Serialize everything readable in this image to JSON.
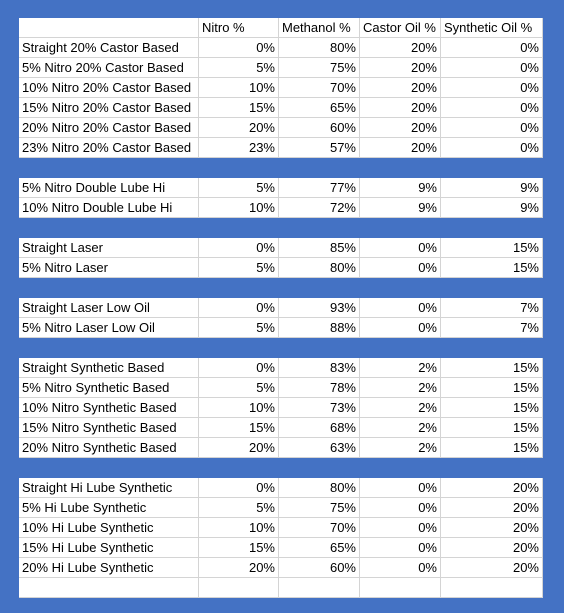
{
  "table": {
    "columns": [
      "Nitro %",
      "Methanol %",
      "Castor Oil %",
      "Synthetic Oil %"
    ],
    "groups": [
      [
        [
          "Straight 20% Castor Based",
          "0%",
          "80%",
          "20%",
          "0%"
        ],
        [
          "5% Nitro 20% Castor Based",
          "5%",
          "75%",
          "20%",
          "0%"
        ],
        [
          "10% Nitro 20% Castor Based",
          "10%",
          "70%",
          "20%",
          "0%"
        ],
        [
          "15% Nitro 20% Castor Based",
          "15%",
          "65%",
          "20%",
          "0%"
        ],
        [
          "20% Nitro 20% Castor Based",
          "20%",
          "60%",
          "20%",
          "0%"
        ],
        [
          "23% Nitro 20% Castor Based",
          "23%",
          "57%",
          "20%",
          "0%"
        ]
      ],
      [
        [
          "5% Nitro Double Lube Hi",
          "5%",
          "77%",
          "9%",
          "9%"
        ],
        [
          "10% Nitro Double Lube Hi",
          "10%",
          "72%",
          "9%",
          "9%"
        ]
      ],
      [
        [
          "Straight Laser",
          "0%",
          "85%",
          "0%",
          "15%"
        ],
        [
          "5% Nitro Laser",
          "5%",
          "80%",
          "0%",
          "15%"
        ]
      ],
      [
        [
          "Straight Laser Low Oil",
          "0%",
          "93%",
          "0%",
          "7%"
        ],
        [
          "5% Nitro Laser Low Oil",
          "5%",
          "88%",
          "0%",
          "7%"
        ]
      ],
      [
        [
          "Straight Synthetic Based",
          "0%",
          "83%",
          "2%",
          "15%"
        ],
        [
          "5% Nitro Synthetic Based",
          "5%",
          "78%",
          "2%",
          "15%"
        ],
        [
          "10% Nitro Synthetic Based",
          "10%",
          "73%",
          "2%",
          "15%"
        ],
        [
          "15% Nitro Synthetic Based",
          "15%",
          "68%",
          "2%",
          "15%"
        ],
        [
          "20% Nitro Synthetic Based",
          "20%",
          "63%",
          "2%",
          "15%"
        ]
      ],
      [
        [
          "Straight Hi Lube Synthetic",
          "0%",
          "80%",
          "0%",
          "20%"
        ],
        [
          "5% Hi Lube Synthetic",
          "5%",
          "75%",
          "0%",
          "20%"
        ],
        [
          "10% Hi Lube Synthetic",
          "10%",
          "70%",
          "0%",
          "20%"
        ],
        [
          "15% Hi Lube Synthetic",
          "15%",
          "65%",
          "0%",
          "20%"
        ],
        [
          "20% Hi Lube Synthetic",
          "20%",
          "60%",
          "0%",
          "20%"
        ]
      ]
    ]
  }
}
